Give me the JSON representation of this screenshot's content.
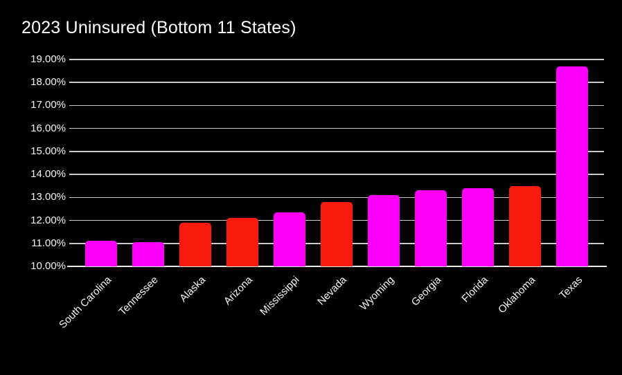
{
  "page": {
    "background_color": "#000000",
    "text_color": "#ffffff"
  },
  "chart_data": {
    "type": "bar",
    "title": "2023 Uninsured (Bottom 11 States)",
    "categories": [
      "South Carolina",
      "Tennessee",
      "Alaska",
      "Arizona",
      "Mississippi",
      "Nevada",
      "Wyoming",
      "Georgia",
      "Florida",
      "Oklahoma",
      "Texas"
    ],
    "values": [
      11.1,
      11.05,
      11.9,
      12.1,
      12.35,
      12.8,
      13.1,
      13.3,
      13.4,
      13.5,
      18.7
    ],
    "bar_colors": [
      "#fb00fb",
      "#fb00fb",
      "#f91b0e",
      "#f91b0e",
      "#fb00fb",
      "#f91b0e",
      "#fb00fb",
      "#fb00fb",
      "#fb00fb",
      "#f91b0e",
      "#fb00fb"
    ],
    "xlabel": "",
    "ylabel": "",
    "ylim": [
      10,
      19
    ],
    "grid": true,
    "legend_position": "none",
    "yticks": [
      {
        "value": 19,
        "label": "19.00%"
      },
      {
        "value": 18,
        "label": "18.00%"
      },
      {
        "value": 17,
        "label": "17.00%"
      },
      {
        "value": 16,
        "label": "16.00%"
      },
      {
        "value": 15,
        "label": "15.00%"
      },
      {
        "value": 14,
        "label": "14.00%"
      },
      {
        "value": 13,
        "label": "13.00%"
      },
      {
        "value": 12,
        "label": "12.00%"
      },
      {
        "value": 11,
        "label": "11.00%"
      },
      {
        "value": 10,
        "label": "10.00%"
      }
    ],
    "colors": {
      "magenta_bar": "#fb00fb",
      "red_bar": "#f91b0e",
      "gridline": "#c9c9c9",
      "axis_line": "#ececec",
      "background": "#000000",
      "text": "#ffffff"
    }
  }
}
